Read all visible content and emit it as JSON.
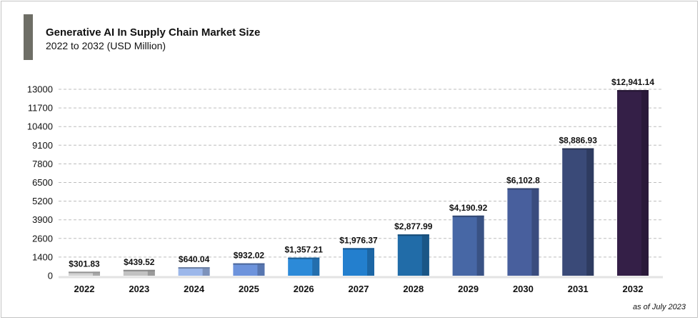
{
  "header": {
    "title": "Generative AI In Supply Chain Market Size",
    "subtitle": "2022 to 2032 (USD Million)"
  },
  "footer": {
    "note": "as of July 2023"
  },
  "chart_data": {
    "type": "bar",
    "categories": [
      "2022",
      "2023",
      "2024",
      "2025",
      "2026",
      "2027",
      "2028",
      "2029",
      "2030",
      "2031",
      "2032"
    ],
    "values": [
      301.83,
      439.52,
      640.04,
      932.02,
      1357.21,
      1976.37,
      2877.99,
      4190.92,
      6102.8,
      8886.93,
      12941.14
    ],
    "data_labels": [
      "$301.83",
      "$439.52",
      "$640.04",
      "$932.02",
      "$1,357.21",
      "$1,976.37",
      "$2,877.99",
      "$4,190.92",
      "$6,102.8",
      "$8,886.93",
      "$12,941.14"
    ],
    "y_ticks": [
      "0",
      "1400",
      "2600",
      "3900",
      "5200",
      "6500",
      "7800",
      "9100",
      "10400",
      "11700",
      "13000"
    ],
    "y_scale": "nonlinear (ticks evenly spaced)",
    "grid": true,
    "legend": "none",
    "colors": [
      "#d3d3d3",
      "#c2c2c2",
      "#9cb7ea",
      "#6d93dc",
      "#2c8ad8",
      "#237fce",
      "#216ca8",
      "#4767a5",
      "#485f9d",
      "#3a4a78",
      "#341f47"
    ]
  }
}
